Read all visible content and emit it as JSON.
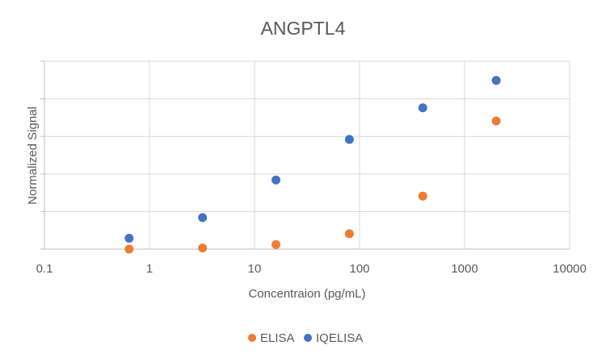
{
  "chart_data": {
    "type": "scatter",
    "title": "ANGPTL4",
    "xlabel": "Concentraion (pg/mL)",
    "ylabel": "Normalized Signal",
    "x_scale": "log",
    "xlim": [
      0.1,
      10000
    ],
    "ylim": [
      0,
      5
    ],
    "x_ticks": [
      "0.1",
      "1",
      "10",
      "100",
      "1000",
      "10000"
    ],
    "y_ticks": [
      0,
      1,
      2,
      3,
      4,
      5
    ],
    "y_tick_labels_visible": false,
    "grid": true,
    "legend_position": "bottom",
    "series": [
      {
        "name": "ELISA",
        "color": "#ED7D31",
        "points": [
          {
            "x": 0.64,
            "y": 0.0
          },
          {
            "x": 3.2,
            "y": 0.03
          },
          {
            "x": 16,
            "y": 0.12
          },
          {
            "x": 80,
            "y": 0.41
          },
          {
            "x": 400,
            "y": 1.41
          },
          {
            "x": 2000,
            "y": 3.41
          }
        ]
      },
      {
        "name": "IQELISA",
        "color": "#4472C4",
        "points": [
          {
            "x": 0.64,
            "y": 0.29
          },
          {
            "x": 3.2,
            "y": 0.84
          },
          {
            "x": 16,
            "y": 1.84
          },
          {
            "x": 80,
            "y": 2.92
          },
          {
            "x": 400,
            "y": 3.76
          },
          {
            "x": 2000,
            "y": 4.49
          }
        ]
      }
    ]
  }
}
